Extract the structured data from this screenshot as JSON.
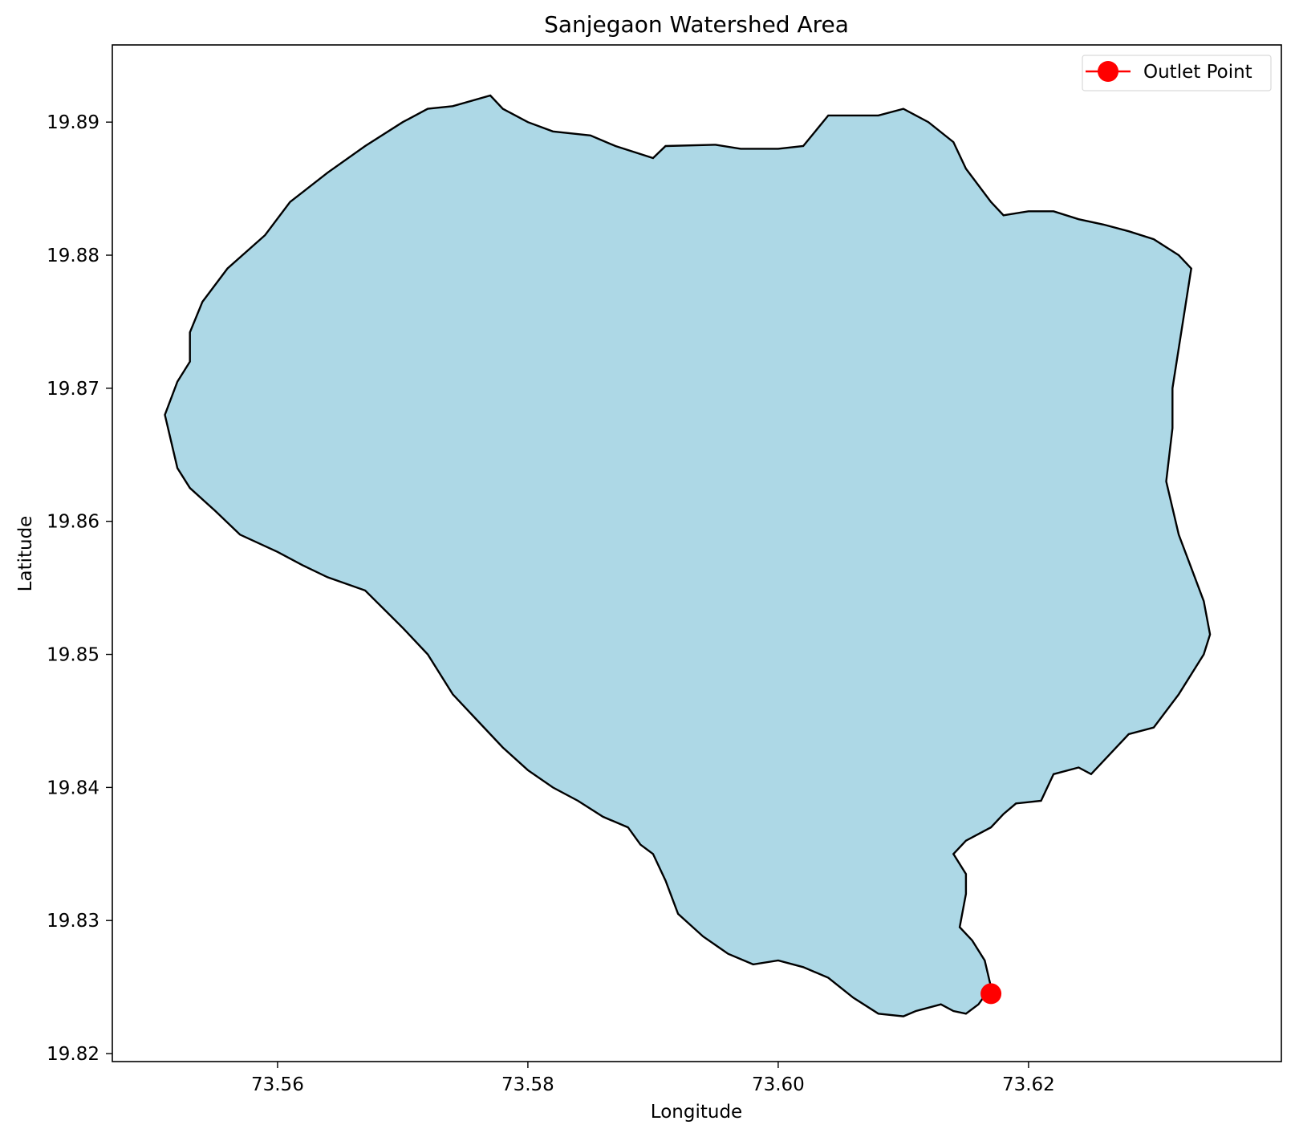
{
  "chart_data": {
    "type": "area",
    "title": "Sanjegaon Watershed Area",
    "xlabel": "Longitude",
    "ylabel": "Latitude",
    "xlim": [
      73.5468,
      73.6402
    ],
    "ylim": [
      19.8194,
      19.8958
    ],
    "xticks": [
      73.56,
      73.58,
      73.6,
      73.62
    ],
    "xtick_labels": [
      "73.56",
      "73.58",
      "73.60",
      "73.62"
    ],
    "yticks": [
      19.82,
      19.83,
      19.84,
      19.85,
      19.86,
      19.87,
      19.88,
      19.89
    ],
    "ytick_labels": [
      "19.82",
      "19.83",
      "19.84",
      "19.85",
      "19.86",
      "19.87",
      "19.88",
      "19.89"
    ],
    "grid": false,
    "legend_position": "top-right",
    "colors": {
      "fill": "#add8e6",
      "edge": "#000000",
      "outlet": "#ff0000"
    },
    "watershed_boundary": {
      "lon": [
        73.577,
        73.578,
        73.58,
        73.582,
        73.585,
        73.587,
        73.59,
        73.591,
        73.595,
        73.597,
        73.6,
        73.602,
        73.604,
        73.605,
        73.608,
        73.61,
        73.612,
        73.614,
        73.615,
        73.617,
        73.618,
        73.62,
        73.622,
        73.624,
        73.626,
        73.628,
        73.63,
        73.632,
        73.633,
        73.6325,
        73.632,
        73.6315,
        73.6315,
        73.631,
        73.6315,
        73.632,
        73.633,
        73.634,
        73.6345,
        73.634,
        73.632,
        73.63,
        73.628,
        73.626,
        73.625,
        73.624,
        73.622,
        73.621,
        73.619,
        73.618,
        73.617,
        73.615,
        73.614,
        73.615,
        73.615,
        73.6145,
        73.6155,
        73.6165,
        73.617,
        73.616,
        73.615,
        73.614,
        73.613,
        73.611,
        73.61,
        73.608,
        73.606,
        73.604,
        73.602,
        73.6,
        73.598,
        73.596,
        73.594,
        73.592,
        73.591,
        73.59,
        73.589,
        73.588,
        73.586,
        73.584,
        73.582,
        73.58,
        73.578,
        73.576,
        73.574,
        73.572,
        73.57,
        73.567,
        73.564,
        73.562,
        73.56,
        73.557,
        73.555,
        73.553,
        73.552,
        73.5515,
        73.551,
        73.552,
        73.553,
        73.553,
        73.554,
        73.556,
        73.559,
        73.561,
        73.564,
        73.567,
        73.57,
        73.572,
        73.574,
        73.577
      ],
      "lat": [
        19.892,
        19.891,
        19.89,
        19.8893,
        19.889,
        19.8882,
        19.8873,
        19.8882,
        19.8883,
        19.888,
        19.888,
        19.8882,
        19.8905,
        19.8905,
        19.8905,
        19.891,
        19.89,
        19.8885,
        19.8865,
        19.884,
        19.883,
        19.8833,
        19.8833,
        19.8827,
        19.8823,
        19.8818,
        19.8812,
        19.88,
        19.879,
        19.876,
        19.873,
        19.87,
        19.867,
        19.863,
        19.861,
        19.859,
        19.8565,
        19.854,
        19.8515,
        19.85,
        19.847,
        19.8445,
        19.844,
        19.842,
        19.841,
        19.8415,
        19.841,
        19.839,
        19.8388,
        19.838,
        19.837,
        19.836,
        19.835,
        19.8335,
        19.832,
        19.8295,
        19.8285,
        19.827,
        19.825,
        19.8237,
        19.823,
        19.8232,
        19.8237,
        19.8232,
        19.8228,
        19.823,
        19.8242,
        19.8257,
        19.8265,
        19.827,
        19.8267,
        19.8275,
        19.8288,
        19.8305,
        19.833,
        19.835,
        19.8357,
        19.837,
        19.8378,
        19.839,
        19.84,
        19.8413,
        19.843,
        19.845,
        19.847,
        19.85,
        19.852,
        19.8548,
        19.8558,
        19.8567,
        19.8577,
        19.859,
        19.8608,
        19.8625,
        19.864,
        19.866,
        19.868,
        19.8705,
        19.872,
        19.8742,
        19.8765,
        19.879,
        19.8815,
        19.884,
        19.8862,
        19.8882,
        19.89,
        19.891,
        19.8912,
        19.892
      ]
    },
    "series": [
      {
        "name": "Outlet Point",
        "x": [
          73.617
        ],
        "y": [
          19.8245
        ]
      }
    ]
  }
}
